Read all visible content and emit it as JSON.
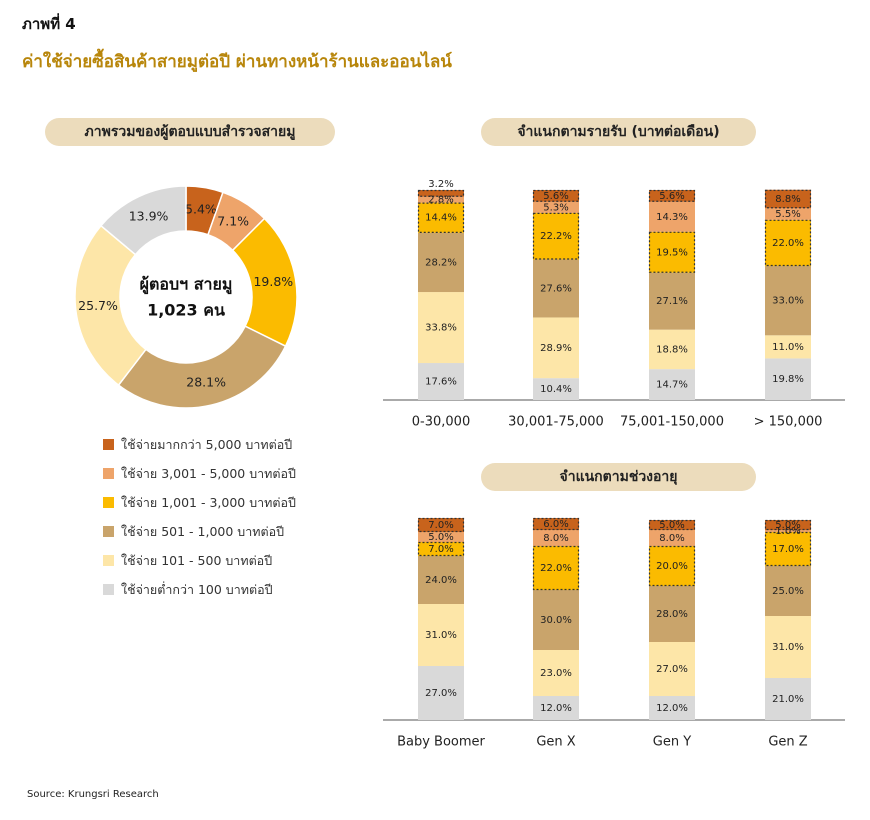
{
  "figure_label": "ภาพที่ 4",
  "title": "ค่าใช้จ่ายซื้อสินค้าสายมูต่อปี ผ่านทางหน้าร้านและออนไลน์",
  "source": "Source: Krungsri Research",
  "colors": {
    "over5000": "#c8631c",
    "r3001_5000": "#eea46a",
    "r1001_3000": "#fbbb00",
    "r501_1000": "#c9a46b",
    "r101_500": "#fde6a8",
    "under100": "#d9d9d9"
  },
  "legend": [
    {
      "label": "ใช้จ่ายมากกว่า 5,000 บาทต่อปี",
      "color": "#c8631c"
    },
    {
      "label": "ใช้จ่าย 3,001 - 5,000 บาทต่อปี",
      "color": "#eea46a"
    },
    {
      "label": "ใช้จ่าย 1,001 - 3,000 บาทต่อปี",
      "color": "#fbbb00"
    },
    {
      "label": "ใช้จ่าย 501 - 1,000 บาทต่อปี",
      "color": "#c9a46b"
    },
    {
      "label": "ใช้จ่าย 101 - 500 บาทต่อปี",
      "color": "#fde6a8"
    },
    {
      "label": "ใช้จ่ายต่ำกว่า 100 บาทต่อปี",
      "color": "#d9d9d9"
    }
  ],
  "chart_data": [
    {
      "type": "pie",
      "title": "ภาพรวมของผู้ตอบแบบสำรวจสายมู",
      "center_label_line1": "ผู้ตอบฯ สายมู",
      "center_label_line2": "1,023 คน",
      "slices": [
        {
          "category": "ใช้จ่ายมากกว่า 5,000 บาทต่อปี",
          "value": 5.4,
          "label": "5.4%"
        },
        {
          "category": "ใช้จ่าย 3,001 - 5,000 บาทต่อปี",
          "value": 7.1,
          "label": "7.1%"
        },
        {
          "category": "ใช้จ่าย 1,001 - 3,000 บาทต่อปี",
          "value": 19.8,
          "label": "19.8%"
        },
        {
          "category": "ใช้จ่าย 501 - 1,000 บาทต่อปี",
          "value": 28.1,
          "label": "28.1%"
        },
        {
          "category": "ใช้จ่าย 101 - 500 บาทต่อปี",
          "value": 25.7,
          "label": "25.7%"
        },
        {
          "category": "ใช้จ่ายต่ำกว่า 100 บาทต่อปี",
          "value": 13.9,
          "label": "13.9%"
        }
      ]
    },
    {
      "type": "bar",
      "stacked": true,
      "title": "จำแนกตามรายรับ (บาทต่อเดือน)",
      "categories": [
        "0-30,000",
        "30,001-75,000",
        "75,001-150,000",
        "> 150,000"
      ],
      "series": [
        {
          "legend_index": 5,
          "values": [
            17.6,
            10.4,
            14.7,
            19.8
          ],
          "labels": [
            "17.6%",
            "10.4%",
            "14.7%",
            "19.8%"
          ]
        },
        {
          "legend_index": 4,
          "values": [
            33.8,
            28.9,
            18.8,
            11.0
          ],
          "labels": [
            "33.8%",
            "28.9%",
            "18.8%",
            "11.0%"
          ]
        },
        {
          "legend_index": 3,
          "values": [
            28.2,
            27.6,
            27.1,
            33.0
          ],
          "labels": [
            "28.2%",
            "27.6%",
            "27.1%",
            "33.0%"
          ]
        },
        {
          "legend_index": 2,
          "values": [
            14.4,
            22.2,
            19.5,
            22.0
          ],
          "labels": [
            "14.4%",
            "22.2%",
            "19.5%",
            "22.0%"
          ]
        },
        {
          "legend_index": 1,
          "values": [
            2.8,
            5.3,
            14.3,
            5.5
          ],
          "labels": [
            "2.8%",
            "5.3%",
            "14.3%",
            "5.5%"
          ]
        },
        {
          "legend_index": 0,
          "values": [
            3.2,
            5.6,
            5.6,
            8.8
          ],
          "labels": [
            "3.2%",
            "5.6%",
            "5.6%",
            "8.8%"
          ]
        }
      ],
      "highlighted_series": [
        0,
        2
      ],
      "ylim": [
        0,
        100
      ]
    },
    {
      "type": "bar",
      "stacked": true,
      "title": "จำแนกตามช่วงอายุ",
      "categories": [
        "Baby Boomer",
        "Gen X",
        "Gen Y",
        "Gen Z"
      ],
      "series": [
        {
          "legend_index": 5,
          "values": [
            27.0,
            12.0,
            12.0,
            21.0
          ],
          "labels": [
            "27.0%",
            "12.0%",
            "12.0%",
            "21.0%"
          ]
        },
        {
          "legend_index": 4,
          "values": [
            31.0,
            23.0,
            27.0,
            31.0
          ],
          "labels": [
            "31.0%",
            "23.0%",
            "27.0%",
            "31.0%"
          ]
        },
        {
          "legend_index": 3,
          "values": [
            24.0,
            30.0,
            28.0,
            25.0
          ],
          "labels": [
            "24.0%",
            "30.0%",
            "28.0%",
            "25.0%"
          ]
        },
        {
          "legend_index": 2,
          "values": [
            7.0,
            22.0,
            20.0,
            17.0
          ],
          "labels": [
            "7.0%",
            "22.0%",
            "20.0%",
            "17.0%"
          ]
        },
        {
          "legend_index": 1,
          "values": [
            5.0,
            8.0,
            8.0,
            1.0
          ],
          "labels": [
            "5.0%",
            "8.0%",
            "8.0%",
            "1.0%"
          ]
        },
        {
          "legend_index": 0,
          "values": [
            7.0,
            6.0,
            5.0,
            5.0
          ],
          "labels": [
            "7.0%",
            "6.0%",
            "5.0%",
            "5.0%"
          ]
        }
      ],
      "highlighted_series": [
        0,
        2
      ],
      "ylim": [
        0,
        100
      ]
    }
  ]
}
